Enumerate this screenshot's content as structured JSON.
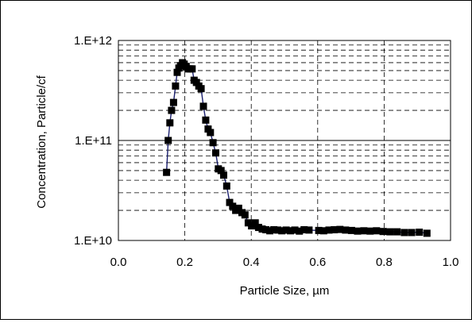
{
  "chart_data": {
    "type": "scatter",
    "title": "",
    "xlabel": "Particle Size, µm",
    "ylabel": "Concentration, Particle/cf",
    "xlim": [
      0.0,
      1.0
    ],
    "ylim": [
      10000000000.0,
      1000000000000.0
    ],
    "yscale": "log",
    "x_ticks": [
      0.0,
      0.2,
      0.4,
      0.6,
      0.8,
      1.0
    ],
    "x_tick_labels": [
      "0.0",
      "0.2",
      "0.4",
      "0.6",
      "0.8",
      "1.0"
    ],
    "y_ticks": [
      10000000000.0,
      100000000000.0,
      1000000000000.0
    ],
    "y_tick_labels": [
      "1.E+10",
      "1.E+11",
      "1.E+12"
    ],
    "grid": "major and minor, dashed",
    "legend": "none",
    "series": [
      {
        "marker": "square",
        "line": true,
        "x": [
          0.145,
          0.15,
          0.155,
          0.16,
          0.166,
          0.172,
          0.177,
          0.182,
          0.187,
          0.193,
          0.198,
          0.204,
          0.21,
          0.216,
          0.222,
          0.228,
          0.235,
          0.242,
          0.249,
          0.256,
          0.263,
          0.27,
          0.277,
          0.285,
          0.293,
          0.301,
          0.309,
          0.317,
          0.326,
          0.335,
          0.344,
          0.353,
          0.362,
          0.372,
          0.381,
          0.391,
          0.401,
          0.412,
          0.422,
          0.433,
          0.444,
          0.456,
          0.468,
          0.48,
          0.492,
          0.505,
          0.518,
          0.531,
          0.545,
          0.559,
          0.574,
          0.603,
          0.618,
          0.634,
          0.65,
          0.667,
          0.684,
          0.702,
          0.72,
          0.739,
          0.758,
          0.777,
          0.797,
          0.818,
          0.839,
          0.861,
          0.883,
          0.906,
          0.929
        ],
        "y": [
          48000000000.0,
          100000000000.0,
          150000000000.0,
          200000000000.0,
          240000000000.0,
          350000000000.0,
          480000000000.0,
          530000000000.0,
          560000000000.0,
          600000000000.0,
          580000000000.0,
          550000000000.0,
          520000000000.0,
          520000000000.0,
          520000000000.0,
          400000000000.0,
          380000000000.0,
          350000000000.0,
          330000000000.0,
          220000000000.0,
          160000000000.0,
          130000000000.0,
          120000000000.0,
          95000000000.0,
          75000000000.0,
          52000000000.0,
          50000000000.0,
          45000000000.0,
          35000000000.0,
          24000000000.0,
          22000000000.0,
          20000000000.0,
          21000000000.0,
          19000000000.0,
          18000000000.0,
          15000000000.0,
          14000000000.0,
          15000000000.0,
          13500000000.0,
          13000000000.0,
          12800000000.0,
          12500000000.0,
          12800000000.0,
          12700000000.0,
          12500000000.0,
          12700000000.0,
          12500000000.0,
          12700000000.0,
          12400000000.0,
          12800000000.0,
          12700000000.0,
          12600000000.0,
          12500000000.0,
          12700000000.0,
          12800000000.0,
          12900000000.0,
          12700000000.0,
          12600000000.0,
          12400000000.0,
          12500000000.0,
          12400000000.0,
          12500000000.0,
          12300000000.0,
          12200000000.0,
          12200000000.0,
          12000000000.0,
          12000000000.0,
          12100000000.0,
          11800000000.0
        ]
      }
    ],
    "colors": {
      "marker": "#000000",
      "line": "#1a1f6e",
      "grid": "#000000",
      "frame": "#000000"
    }
  }
}
